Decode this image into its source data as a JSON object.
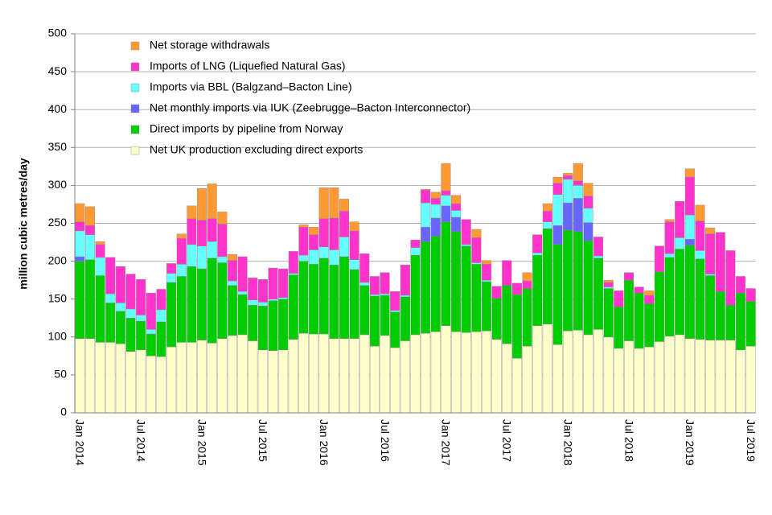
{
  "chart_data": {
    "type": "stacked_bar",
    "y_label": "million cubic metres/day",
    "categories": [
      "Jan 2014",
      null,
      null,
      null,
      null,
      null,
      "Jul 2014",
      null,
      null,
      null,
      null,
      null,
      "Jan 2015",
      null,
      null,
      null,
      null,
      null,
      "Jul 2015",
      null,
      null,
      null,
      null,
      null,
      "Jan 2016",
      null,
      null,
      null,
      null,
      null,
      "Jul 2016",
      null,
      null,
      null,
      null,
      null,
      "Jan 2017",
      null,
      null,
      null,
      null,
      null,
      "Jul 2017",
      null,
      null,
      null,
      null,
      null,
      "Jan 2018",
      null,
      null,
      null,
      null,
      null,
      "Jul 2018",
      null,
      null,
      null,
      null,
      null,
      "Jan 2019",
      null,
      null,
      null,
      null,
      null,
      "Jul 2019"
    ],
    "series": [
      {
        "name": "Net UK production excluding direct exports",
        "color": "#ffffcc",
        "values": [
          98,
          98,
          93,
          93,
          91,
          81,
          83,
          75,
          74,
          87,
          93,
          93,
          96,
          92,
          98,
          102,
          103,
          95,
          83,
          82,
          83,
          97,
          105,
          104,
          104,
          98,
          98,
          98,
          103,
          88,
          102,
          86,
          95,
          103,
          105,
          107,
          115,
          107,
          106,
          107,
          108,
          97,
          91,
          72,
          88,
          115,
          117,
          90,
          108,
          109,
          103,
          110,
          100,
          85,
          95,
          85,
          87,
          94,
          101,
          103,
          98,
          97,
          96,
          96,
          96,
          83,
          88
        ]
      },
      {
        "name": "Direct imports by pipeline from Norway",
        "color": "#00cc00",
        "values": [
          102,
          104,
          88,
          52,
          43,
          44,
          38,
          29,
          46,
          85,
          87,
          100,
          94,
          112,
          100,
          66,
          53,
          47,
          58,
          66,
          67,
          85,
          95,
          92,
          100,
          97,
          108,
          91,
          65,
          66,
          53,
          47,
          58,
          105,
          121,
          126,
          137,
          132,
          114,
          89,
          65,
          54,
          77,
          84,
          76,
          93,
          126,
          132,
          133,
          130,
          124,
          94,
          64,
          55,
          80,
          73,
          57,
          92,
          104,
          113,
          123,
          106,
          85,
          64,
          46,
          75,
          59
        ]
      },
      {
        "name": "Net monthly imports via IUK (Zeebrugge–Bacton Interconnector)",
        "color": "#6666ff",
        "values": [
          6,
          0,
          0,
          0,
          0,
          0,
          0,
          0,
          0,
          0,
          0,
          0,
          0,
          0,
          0,
          0,
          0,
          0,
          0,
          0,
          0,
          0,
          0,
          0,
          0,
          0,
          0,
          0,
          0,
          0,
          0,
          0,
          0,
          0,
          19,
          24,
          21,
          19,
          0,
          0,
          0,
          0,
          0,
          0,
          0,
          0,
          0,
          25,
          36,
          44,
          24,
          0,
          0,
          0,
          0,
          0,
          0,
          0,
          0,
          0,
          8,
          0,
          0,
          0,
          0,
          0,
          0
        ]
      },
      {
        "name": "Imports via BBL (Balgzand–Bacton Line)",
        "color": "#66ffff",
        "values": [
          34,
          33,
          24,
          12,
          11,
          12,
          8,
          6,
          16,
          12,
          16,
          29,
          30,
          22,
          8,
          6,
          4,
          7,
          5,
          2,
          2,
          2,
          8,
          19,
          15,
          20,
          26,
          13,
          4,
          2,
          2,
          2,
          2,
          10,
          32,
          18,
          14,
          9,
          2,
          2,
          2,
          0,
          0,
          0,
          0,
          3,
          9,
          41,
          31,
          17,
          19,
          3,
          2,
          0,
          0,
          0,
          0,
          0,
          5,
          15,
          32,
          11,
          2,
          0,
          0,
          0,
          0
        ]
      },
      {
        "name": "Imports of LNG (Liquefied Natural Gas)",
        "color": "#ff33cc",
        "values": [
          12,
          12,
          17,
          48,
          48,
          46,
          47,
          48,
          27,
          13,
          34,
          34,
          34,
          30,
          43,
          27,
          46,
          29,
          30,
          41,
          38,
          29,
          37,
          20,
          37,
          42,
          34,
          38,
          38,
          24,
          28,
          25,
          40,
          10,
          17,
          8,
          6,
          9,
          33,
          33,
          21,
          16,
          33,
          15,
          10,
          24,
          14,
          15,
          5,
          6,
          16,
          25,
          6,
          21,
          10,
          8,
          11,
          34,
          42,
          48,
          50,
          39,
          53,
          78,
          72,
          22,
          17
        ]
      },
      {
        "name": "Net storage withdrawals",
        "color": "#ff9933",
        "values": [
          24,
          25,
          4,
          0,
          0,
          0,
          0,
          0,
          0,
          0,
          6,
          17,
          42,
          46,
          16,
          8,
          0,
          0,
          0,
          0,
          0,
          0,
          3,
          10,
          41,
          40,
          16,
          12,
          0,
          0,
          0,
          0,
          0,
          0,
          1,
          8,
          36,
          11,
          0,
          11,
          5,
          0,
          0,
          0,
          11,
          0,
          10,
          8,
          3,
          23,
          17,
          0,
          3,
          0,
          0,
          0,
          6,
          0,
          3,
          0,
          11,
          21,
          8,
          0,
          0,
          0,
          0
        ]
      }
    ],
    "ylim": [
      0,
      500
    ],
    "yticks": [
      0,
      50,
      100,
      150,
      200,
      250,
      300,
      350,
      400,
      450,
      500
    ],
    "grid": true
  }
}
